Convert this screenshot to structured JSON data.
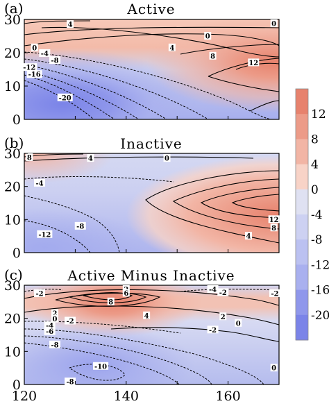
{
  "chart_data": [
    {
      "type": "heatmap",
      "panel_label": "(a)",
      "title": "Active",
      "xlabel": "",
      "ylabel": "",
      "xlim": [
        120,
        170
      ],
      "ylim": [
        0,
        30
      ],
      "y_ticks": [
        "0",
        "10",
        "20",
        "30"
      ],
      "x_ticks": [],
      "contour_labels": [
        {
          "text": "4",
          "x": 129,
          "y": 28.5
        },
        {
          "text": "0",
          "x": 122,
          "y": 21.5
        },
        {
          "text": "-4",
          "x": 124,
          "y": 19.8
        },
        {
          "text": "-8",
          "x": 126,
          "y": 17.7
        },
        {
          "text": "-12",
          "x": 121,
          "y": 15.6
        },
        {
          "text": "-16",
          "x": 122,
          "y": 13.5
        },
        {
          "text": "-20",
          "x": 128,
          "y": 6.5
        },
        {
          "text": "0",
          "x": 156,
          "y": 25
        },
        {
          "text": "4",
          "x": 149,
          "y": 21.5
        },
        {
          "text": "8",
          "x": 157,
          "y": 19
        },
        {
          "text": "12",
          "x": 165,
          "y": 17
        },
        {
          "text": "0",
          "x": 169,
          "y": 29
        }
      ],
      "field": {
        "description": "Positive anomaly maximum near 168E, 17N (>12); negative minimum near 127E, 5N (< -20)",
        "max": {
          "x": 169,
          "y": 16,
          "value": 14
        },
        "min": {
          "x": 127,
          "y": 4,
          "value": -22
        }
      }
    },
    {
      "type": "heatmap",
      "panel_label": "(b)",
      "title": "Inactive",
      "xlabel": "",
      "ylabel": "",
      "xlim": [
        120,
        170
      ],
      "ylim": [
        0,
        30
      ],
      "y_ticks": [
        "0",
        "10",
        "20",
        "30"
      ],
      "x_ticks": [],
      "contour_labels": [
        {
          "text": "8",
          "x": 121,
          "y": 28.8
        },
        {
          "text": "4",
          "x": 133,
          "y": 28.5
        },
        {
          "text": "0",
          "x": 148,
          "y": 28.5
        },
        {
          "text": "-4",
          "x": 123,
          "y": 21
        },
        {
          "text": "-8",
          "x": 131,
          "y": 8
        },
        {
          "text": "-12",
          "x": 124,
          "y": 5.5
        },
        {
          "text": "12",
          "x": 169,
          "y": 10
        },
        {
          "text": "8",
          "x": 169,
          "y": 7.5
        },
        {
          "text": "4",
          "x": 164,
          "y": 5
        }
      ],
      "field": {
        "description": "Positive anomaly maximum near 170E, 11N (>12); negative minimum near 125E, 4N (< -12)",
        "max": {
          "x": 170,
          "y": 11,
          "value": 14
        },
        "min": {
          "x": 124,
          "y": 3,
          "value": -14
        }
      }
    },
    {
      "type": "heatmap",
      "panel_label": "(c)",
      "title": "Active Minus Inactive",
      "xlabel": "",
      "ylabel": "",
      "xlim": [
        120,
        170
      ],
      "ylim": [
        0,
        30
      ],
      "y_ticks": [
        "0",
        "10",
        "20",
        "30"
      ],
      "x_ticks": [
        "120",
        "140",
        "160"
      ],
      "contour_labels": [
        {
          "text": "-2",
          "x": 123,
          "y": 27.5
        },
        {
          "text": "2",
          "x": 140,
          "y": 29
        },
        {
          "text": "6",
          "x": 140,
          "y": 27.6
        },
        {
          "text": "8",
          "x": 137,
          "y": 25
        },
        {
          "text": "4",
          "x": 144,
          "y": 20.8
        },
        {
          "text": "2",
          "x": 126,
          "y": 21.5
        },
        {
          "text": "0",
          "x": 126,
          "y": 19.8
        },
        {
          "text": "-2",
          "x": 129,
          "y": 19.2
        },
        {
          "text": "-4",
          "x": 125,
          "y": 17.8
        },
        {
          "text": "-6",
          "x": 125,
          "y": 16
        },
        {
          "text": "-8",
          "x": 126,
          "y": 12
        },
        {
          "text": "-10",
          "x": 135,
          "y": 5.5
        },
        {
          "text": "-8",
          "x": 129,
          "y": 0.3
        },
        {
          "text": "-4",
          "x": 157,
          "y": 30
        },
        {
          "text": "-2",
          "x": 159,
          "y": 27.8
        },
        {
          "text": "-2",
          "x": 170,
          "y": 27.5
        },
        {
          "text": "2",
          "x": 159,
          "y": 20.5
        },
        {
          "text": "0",
          "x": 162,
          "y": 18.5
        },
        {
          "text": "-2",
          "x": 157,
          "y": 16.5
        },
        {
          "text": "0",
          "x": 169,
          "y": 5
        }
      ],
      "field": {
        "description": "Positive band along 24-28N centered near 138E (>8); negative region below 18N with minimum near 134E, 6N (< -10)",
        "max": {
          "x": 138,
          "y": 25,
          "value": 9
        },
        "min": {
          "x": 134,
          "y": 5,
          "value": -11
        }
      }
    }
  ],
  "colorbar": {
    "labels": [
      "12",
      "8",
      "4",
      "0",
      "-4",
      "-8",
      "-12",
      "-16",
      "-20"
    ],
    "colors": [
      "#e7826d",
      "#ec9b88",
      "#f2b5a5",
      "#f8d3c7",
      "#dfe1f2",
      "#cdd1f2",
      "#bbc1f1",
      "#a9b0ef",
      "#8f97eb",
      "#7b84e8"
    ]
  }
}
